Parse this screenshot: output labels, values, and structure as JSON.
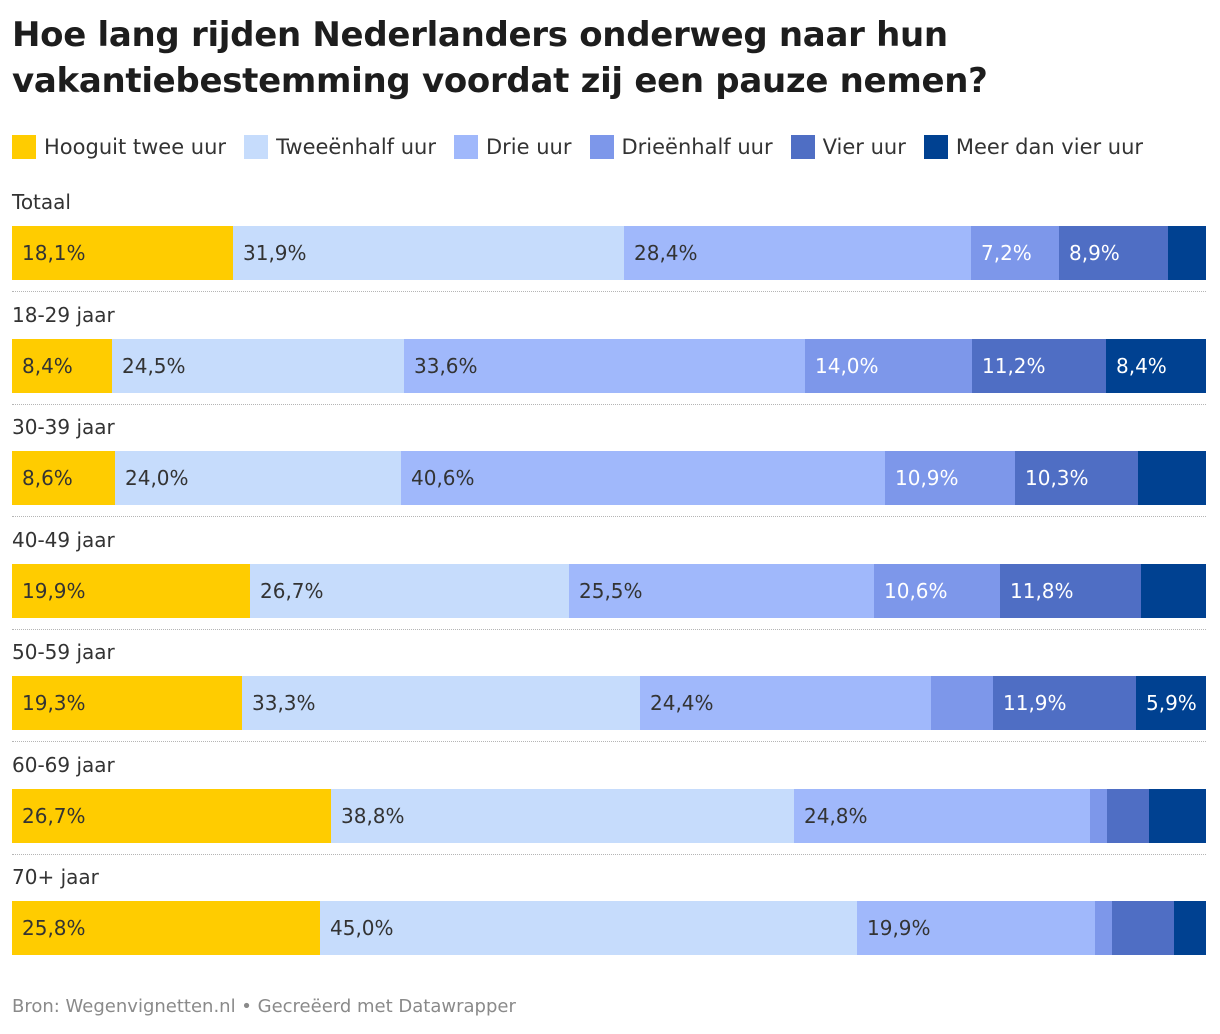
{
  "chart_data": {
    "type": "bar",
    "orientation": "horizontal",
    "stacked": true,
    "title_lines": [
      "Hoe lang rijden Nederlanders onderweg naar hun",
      "vakantiebestemming voordat zij een pauze nemen?"
    ],
    "footer": "Bron: Wegenvignetten.nl • Gecreëerd met Datawrapper",
    "series": [
      {
        "name": "Hooguit twee uur",
        "color": "#ffcc00",
        "label_color": "#333333"
      },
      {
        "name": "Tweeënhalf uur",
        "color": "#c6dcfc",
        "label_color": "#333333"
      },
      {
        "name": "Drie uur",
        "color": "#a0b8fb",
        "label_color": "#333333"
      },
      {
        "name": "Drieënhalf uur",
        "color": "#7d97ea",
        "label_color": "#ffffff"
      },
      {
        "name": "Vier uur",
        "color": "#4f6ec4",
        "label_color": "#ffffff"
      },
      {
        "name": "Meer dan vier uur",
        "color": "#004191",
        "label_color": "#ffffff"
      }
    ],
    "categories": [
      "Totaal",
      "18-29 jaar",
      "30-39 jaar",
      "40-49 jaar",
      "50-59 jaar",
      "60-69 jaar",
      "70+ jaar"
    ],
    "values": [
      [
        18.1,
        31.9,
        28.4,
        7.2,
        8.9,
        3.1
      ],
      [
        8.4,
        24.5,
        33.6,
        14.0,
        11.2,
        8.4
      ],
      [
        8.6,
        24.0,
        40.6,
        10.9,
        10.3,
        5.7
      ],
      [
        19.9,
        26.7,
        25.5,
        10.6,
        11.8,
        5.4
      ],
      [
        19.3,
        33.3,
        24.4,
        5.2,
        11.9,
        5.9
      ],
      [
        26.7,
        38.8,
        24.8,
        1.4,
        3.5,
        4.8
      ],
      [
        25.8,
        45.0,
        19.9,
        1.4,
        5.2,
        2.7
      ]
    ],
    "value_labels": [
      [
        "18,1%",
        "31,9%",
        "28,4%",
        "7,2%",
        "8,9%",
        ""
      ],
      [
        "8,4%",
        "24,5%",
        "33,6%",
        "14,0%",
        "11,2%",
        "8,4%"
      ],
      [
        "8,6%",
        "24,0%",
        "40,6%",
        "10,9%",
        "10,3%",
        ""
      ],
      [
        "19,9%",
        "26,7%",
        "25,5%",
        "10,6%",
        "11,8%",
        ""
      ],
      [
        "19,3%",
        "33,3%",
        "24,4%",
        "",
        "11,9%",
        "5,9%"
      ],
      [
        "26,7%",
        "38,8%",
        "24,8%",
        "",
        "",
        ""
      ],
      [
        "25,8%",
        "45,0%",
        "19,9%",
        "",
        "",
        ""
      ]
    ],
    "xlim": [
      0,
      100
    ],
    "xlabel": "",
    "ylabel": "",
    "grid": false,
    "legend_position": "top"
  }
}
